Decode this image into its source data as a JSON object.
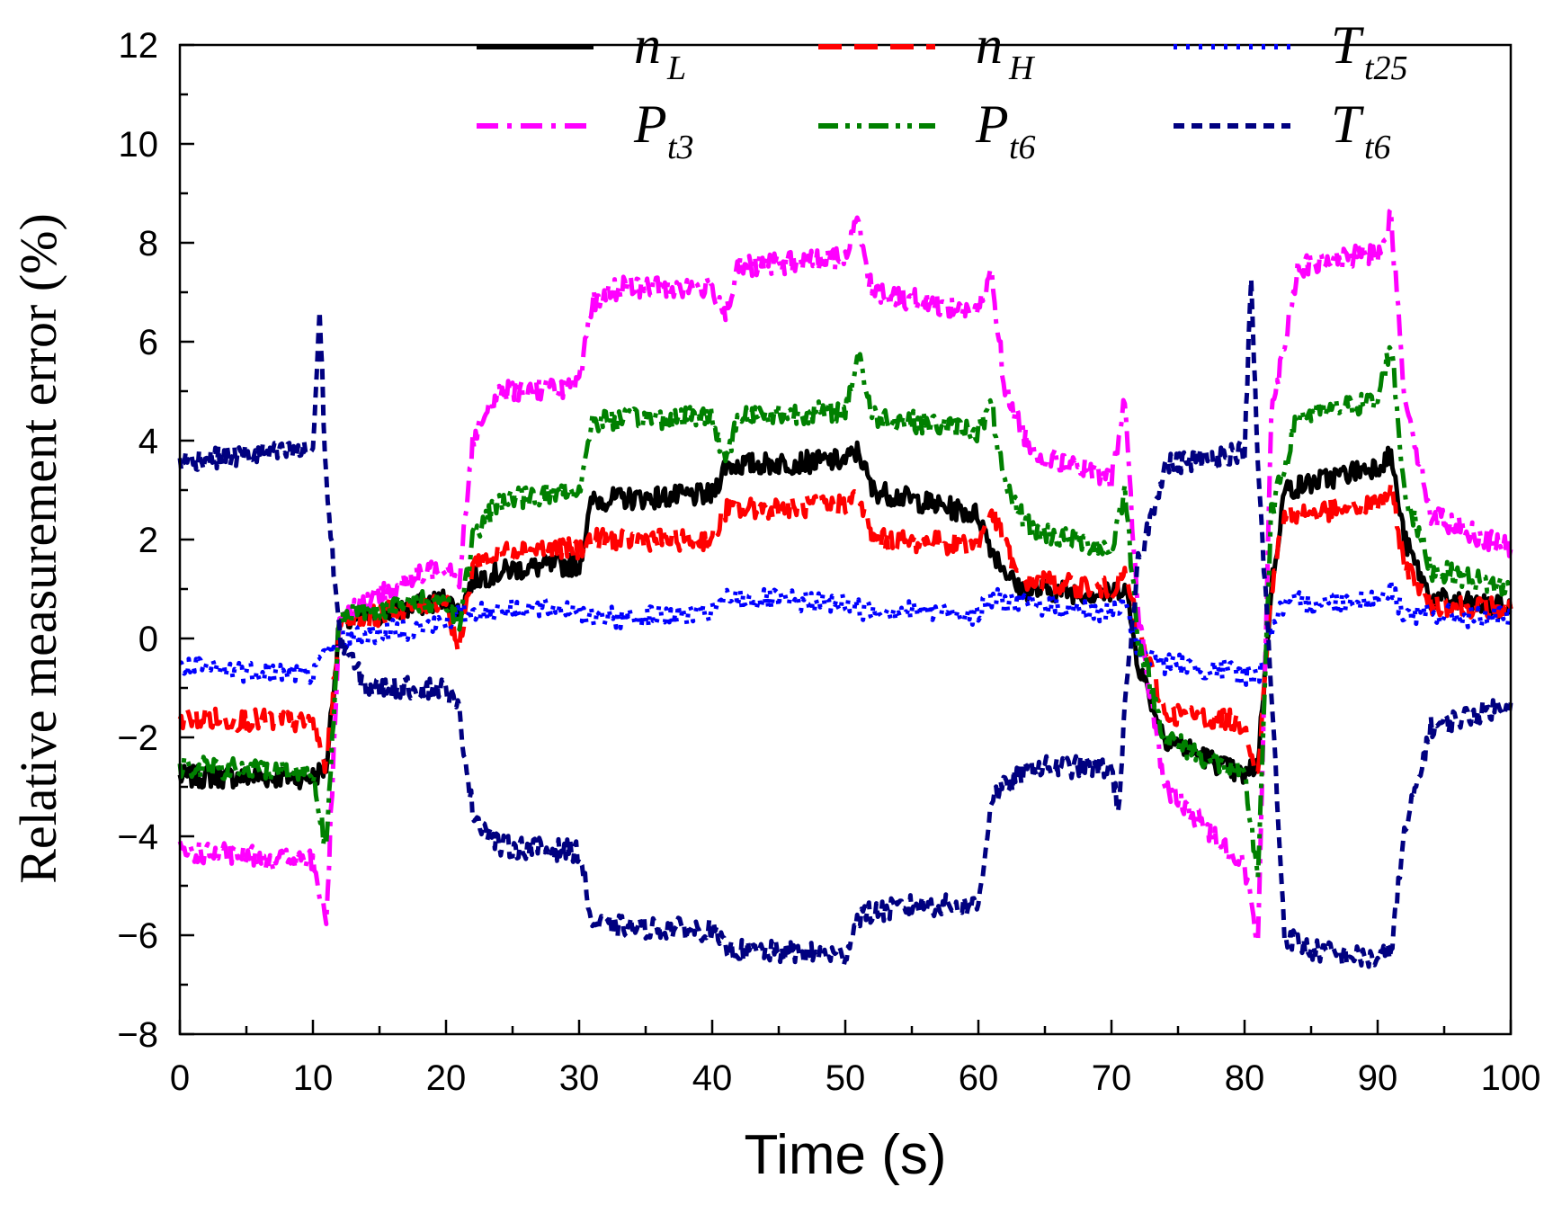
{
  "chart_data": {
    "type": "line",
    "title": "",
    "xlabel": "Time (s)",
    "ylabel": "Relative measurement error (%)",
    "xlim": [
      0,
      100
    ],
    "ylim": [
      -8,
      12
    ],
    "x_ticks": [
      "0",
      "10",
      "20",
      "30",
      "40",
      "50",
      "60",
      "70",
      "80",
      "90",
      "100"
    ],
    "y_ticks": [
      "−8",
      "−6",
      "−4",
      "−2",
      "0",
      "2",
      "4",
      "6",
      "8",
      "10",
      "12"
    ],
    "grid": false,
    "legend_position": "top",
    "series": [
      {
        "name": "nL",
        "label_main": "n",
        "label_sub": "L",
        "color": "#000000",
        "dash": "solid",
        "points": [
          [
            0,
            -2.8
          ],
          [
            10,
            -2.8
          ],
          [
            11,
            -2.6
          ],
          [
            12,
            0.3
          ],
          [
            20,
            0.8
          ],
          [
            21,
            0.5
          ],
          [
            22,
            1.2
          ],
          [
            25,
            1.4
          ],
          [
            30,
            1.5
          ],
          [
            31,
            2.8
          ],
          [
            40,
            2.9
          ],
          [
            41,
            3.5
          ],
          [
            50,
            3.6
          ],
          [
            51,
            3.8
          ],
          [
            52,
            3.0
          ],
          [
            60,
            2.5
          ],
          [
            61,
            1.8
          ],
          [
            63,
            1.0
          ],
          [
            70,
            0.9
          ],
          [
            71,
            1.1
          ],
          [
            72,
            -0.5
          ],
          [
            74,
            -2.0
          ],
          [
            80,
            -2.8
          ],
          [
            81,
            -2.5
          ],
          [
            82,
            1.0
          ],
          [
            83,
            3.0
          ],
          [
            90,
            3.5
          ],
          [
            91,
            3.7
          ],
          [
            92,
            2.0
          ],
          [
            94,
            0.8
          ],
          [
            100,
            0.6
          ]
        ]
      },
      {
        "name": "nH",
        "label_main": "n",
        "label_sub": "H",
        "color": "#ff0000",
        "dash": "dashed",
        "points": [
          [
            0,
            -1.6
          ],
          [
            10,
            -1.7
          ],
          [
            11,
            -2.6
          ],
          [
            12,
            0.3
          ],
          [
            20,
            0.8
          ],
          [
            21,
            -0.3
          ],
          [
            22,
            1.5
          ],
          [
            25,
            1.8
          ],
          [
            30,
            1.8
          ],
          [
            31,
            2.0
          ],
          [
            40,
            2.0
          ],
          [
            41,
            2.6
          ],
          [
            50,
            2.7
          ],
          [
            51,
            2.9
          ],
          [
            52,
            2.0
          ],
          [
            60,
            1.9
          ],
          [
            61,
            2.6
          ],
          [
            63,
            1.2
          ],
          [
            70,
            1.0
          ],
          [
            71,
            1.3
          ],
          [
            72,
            0.2
          ],
          [
            74,
            -1.5
          ],
          [
            80,
            -1.7
          ],
          [
            81,
            -2.8
          ],
          [
            82,
            1.0
          ],
          [
            83,
            2.5
          ],
          [
            90,
            2.7
          ],
          [
            91,
            3.0
          ],
          [
            92,
            1.5
          ],
          [
            94,
            0.7
          ],
          [
            100,
            0.6
          ]
        ]
      },
      {
        "name": "Tt25",
        "label_main": "T",
        "label_sub": "t25",
        "color": "#0000ff",
        "dash": "dotted",
        "points": [
          [
            0,
            -0.6
          ],
          [
            10,
            -0.7
          ],
          [
            11,
            -0.3
          ],
          [
            12,
            0.0
          ],
          [
            20,
            0.3
          ],
          [
            21,
            0.5
          ],
          [
            25,
            0.6
          ],
          [
            30,
            0.6
          ],
          [
            31,
            0.4
          ],
          [
            40,
            0.5
          ],
          [
            41,
            0.8
          ],
          [
            50,
            0.7
          ],
          [
            51,
            0.6
          ],
          [
            60,
            0.5
          ],
          [
            61,
            0.8
          ],
          [
            70,
            0.5
          ],
          [
            71,
            0.7
          ],
          [
            72,
            -0.2
          ],
          [
            74,
            -0.5
          ],
          [
            80,
            -0.7
          ],
          [
            81,
            -0.8
          ],
          [
            82,
            0.2
          ],
          [
            83,
            0.7
          ],
          [
            90,
            0.8
          ],
          [
            91,
            1.0
          ],
          [
            92,
            0.5
          ],
          [
            100,
            0.4
          ]
        ]
      },
      {
        "name": "Pt3",
        "label_main": "P",
        "label_sub": "t3",
        "color": "#ff00ff",
        "dash": "dashdot",
        "points": [
          [
            0,
            -4.3
          ],
          [
            10,
            -4.5
          ],
          [
            11,
            -5.8
          ],
          [
            12,
            0.5
          ],
          [
            20,
            1.5
          ],
          [
            21,
            1.2
          ],
          [
            22,
            4.0
          ],
          [
            24,
            5.0
          ],
          [
            30,
            5.1
          ],
          [
            31,
            6.8
          ],
          [
            33,
            7.1
          ],
          [
            40,
            7.1
          ],
          [
            41,
            6.6
          ],
          [
            42,
            7.5
          ],
          [
            50,
            7.7
          ],
          [
            51,
            8.5
          ],
          [
            52,
            7.0
          ],
          [
            60,
            6.6
          ],
          [
            61,
            7.4
          ],
          [
            62,
            5.0
          ],
          [
            64,
            3.8
          ],
          [
            70,
            3.2
          ],
          [
            71,
            4.8
          ],
          [
            72,
            0.5
          ],
          [
            74,
            -3.0
          ],
          [
            80,
            -4.6
          ],
          [
            81,
            -6.2
          ],
          [
            82,
            4.5
          ],
          [
            84,
            7.5
          ],
          [
            90,
            7.8
          ],
          [
            91,
            8.5
          ],
          [
            92,
            5.0
          ],
          [
            94,
            2.5
          ],
          [
            100,
            1.8
          ]
        ]
      },
      {
        "name": "Pt6",
        "label_main": "P",
        "label_sub": "t6",
        "color": "#008000",
        "dash": "dashdotdot",
        "points": [
          [
            0,
            -2.6
          ],
          [
            10,
            -2.7
          ],
          [
            11,
            -4.3
          ],
          [
            12,
            0.5
          ],
          [
            20,
            0.8
          ],
          [
            21,
            0.3
          ],
          [
            22,
            2.0
          ],
          [
            24,
            2.8
          ],
          [
            30,
            3.0
          ],
          [
            31,
            4.4
          ],
          [
            40,
            4.5
          ],
          [
            41,
            3.6
          ],
          [
            42,
            4.5
          ],
          [
            50,
            4.6
          ],
          [
            51,
            5.8
          ],
          [
            52,
            4.5
          ],
          [
            60,
            4.2
          ],
          [
            61,
            4.7
          ],
          [
            62,
            3.0
          ],
          [
            64,
            2.2
          ],
          [
            70,
            1.8
          ],
          [
            71,
            3.0
          ],
          [
            72,
            0.0
          ],
          [
            74,
            -2.0
          ],
          [
            80,
            -2.8
          ],
          [
            81,
            -4.8
          ],
          [
            82,
            2.5
          ],
          [
            84,
            4.5
          ],
          [
            90,
            4.8
          ],
          [
            91,
            6.0
          ],
          [
            92,
            3.0
          ],
          [
            94,
            1.4
          ],
          [
            100,
            1.0
          ]
        ]
      },
      {
        "name": "Tt6",
        "label_main": "T",
        "label_sub": "t6",
        "color": "#000080",
        "dash": "shortdash",
        "points": [
          [
            0,
            3.6
          ],
          [
            10,
            3.8
          ],
          [
            10.5,
            6.6
          ],
          [
            11,
            3.2
          ],
          [
            12,
            0.0
          ],
          [
            14,
            -1.0
          ],
          [
            20,
            -1.0
          ],
          [
            21,
            -1.5
          ],
          [
            22,
            -3.5
          ],
          [
            24,
            -4.2
          ],
          [
            30,
            -4.3
          ],
          [
            31,
            -5.8
          ],
          [
            40,
            -5.9
          ],
          [
            41,
            -6.3
          ],
          [
            50,
            -6.4
          ],
          [
            51,
            -5.6
          ],
          [
            55,
            -5.4
          ],
          [
            60,
            -5.4
          ],
          [
            61,
            -3.2
          ],
          [
            64,
            -2.6
          ],
          [
            70,
            -2.6
          ],
          [
            70.5,
            -3.5
          ],
          [
            71,
            -1.5
          ],
          [
            72,
            1.5
          ],
          [
            74,
            3.5
          ],
          [
            80,
            3.8
          ],
          [
            80.5,
            7.2
          ],
          [
            81,
            3.5
          ],
          [
            82,
            -1.0
          ],
          [
            83,
            -6.0
          ],
          [
            85,
            -6.3
          ],
          [
            90,
            -6.5
          ],
          [
            91,
            -6.3
          ],
          [
            92,
            -4.0
          ],
          [
            94,
            -1.8
          ],
          [
            100,
            -1.3
          ]
        ]
      }
    ]
  }
}
